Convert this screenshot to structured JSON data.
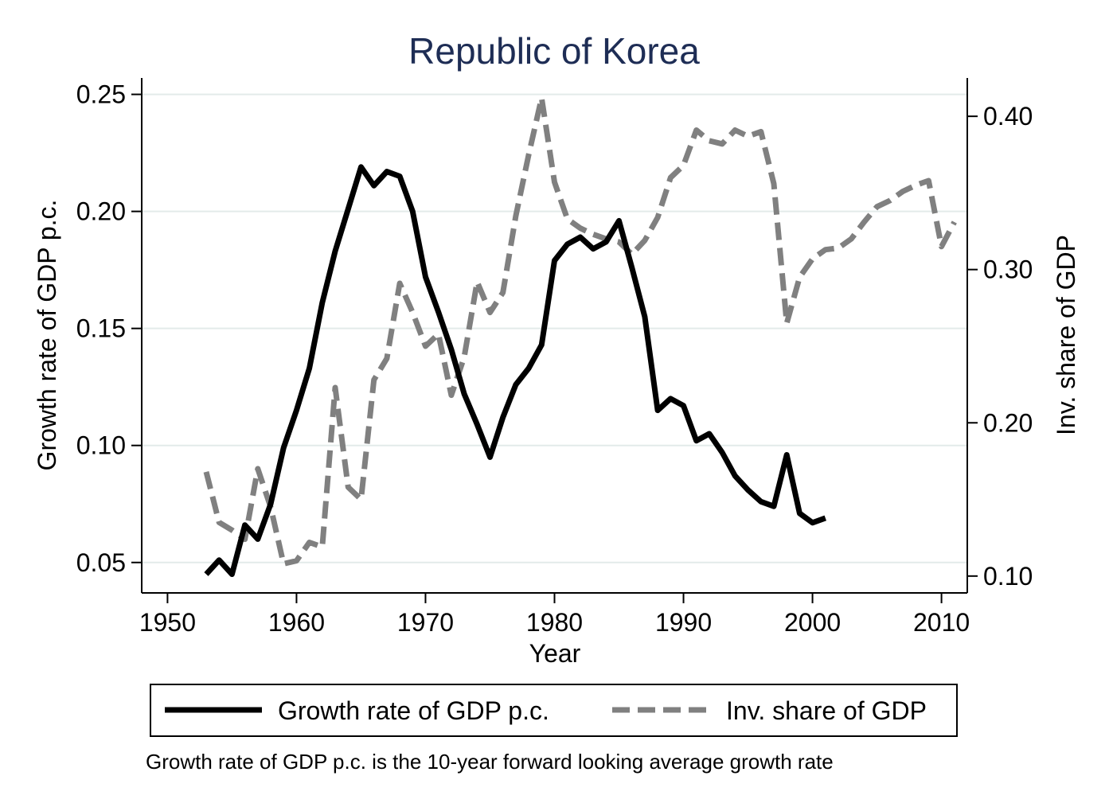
{
  "chart_data": {
    "type": "line",
    "title": "Republic of Korea",
    "xlabel": "Year",
    "ylabel_left": "Growth rate of GDP p.c.",
    "ylabel_right": "Inv. share of GDP",
    "xlim": [
      1948,
      2012
    ],
    "ylim_left": [
      0.037,
      0.257
    ],
    "ylim_right": [
      0.089,
      0.425
    ],
    "x_ticks": [
      1950,
      1960,
      1970,
      1980,
      1990,
      2000,
      2010
    ],
    "x_tick_labels": [
      "1950",
      "1960",
      "1970",
      "1980",
      "1990",
      "2000",
      "2010"
    ],
    "y_left_ticks": [
      0.05,
      0.1,
      0.15,
      0.2,
      0.25
    ],
    "y_left_tick_labels": [
      "0.05",
      "0.10",
      "0.15",
      "0.20",
      "0.25"
    ],
    "y_right_ticks": [
      0.1,
      0.2,
      0.3,
      0.4
    ],
    "y_right_tick_labels": [
      "0.10",
      "0.20",
      "0.30",
      "0.40"
    ],
    "grid": "horizontal",
    "legend_position": "bottom",
    "series": [
      {
        "name": "Growth rate of GDP p.c.",
        "axis": "left",
        "style": "solid",
        "color": "#000000",
        "x": [
          1953,
          1954,
          1955,
          1956,
          1957,
          1958,
          1959,
          1960,
          1961,
          1962,
          1963,
          1964,
          1965,
          1966,
          1967,
          1968,
          1969,
          1970,
          1971,
          1972,
          1973,
          1974,
          1975,
          1976,
          1977,
          1978,
          1979,
          1980,
          1981,
          1982,
          1983,
          1984,
          1985,
          1986,
          1987,
          1988,
          1989,
          1990,
          1991,
          1992,
          1993,
          1994,
          1995,
          1996,
          1997,
          1998,
          1999,
          2000,
          2001
        ],
        "y": [
          0.045,
          0.051,
          0.045,
          0.066,
          0.06,
          0.075,
          0.099,
          0.115,
          0.133,
          0.161,
          0.183,
          0.201,
          0.219,
          0.211,
          0.217,
          0.215,
          0.2,
          0.172,
          0.157,
          0.141,
          0.122,
          0.109,
          0.095,
          0.112,
          0.126,
          0.133,
          0.143,
          0.179,
          0.186,
          0.189,
          0.184,
          0.187,
          0.196,
          0.176,
          0.155,
          0.115,
          0.12,
          0.117,
          0.102,
          0.105,
          0.097,
          0.087,
          0.081,
          0.076,
          0.074,
          0.096,
          0.071,
          0.067,
          0.069
        ]
      },
      {
        "name": "Inv. share of GDP",
        "axis": "right",
        "style": "dashed",
        "color": "#808080",
        "x": [
          1953,
          1954,
          1955,
          1956,
          1957,
          1958,
          1959,
          1960,
          1961,
          1962,
          1963,
          1964,
          1965,
          1966,
          1967,
          1968,
          1969,
          1970,
          1971,
          1972,
          1973,
          1974,
          1975,
          1976,
          1977,
          1978,
          1979,
          1980,
          1981,
          1982,
          1983,
          1984,
          1985,
          1986,
          1987,
          1988,
          1989,
          1990,
          1991,
          1992,
          1993,
          1994,
          1995,
          1996,
          1997,
          1998,
          1999,
          2000,
          2001,
          2002,
          2003,
          2004,
          2005,
          2006,
          2007,
          2008,
          2009,
          2010,
          2011
        ],
        "y": [
          0.168,
          0.135,
          0.13,
          0.124,
          0.17,
          0.145,
          0.108,
          0.11,
          0.122,
          0.119,
          0.223,
          0.158,
          0.15,
          0.228,
          0.242,
          0.291,
          0.272,
          0.25,
          0.258,
          0.218,
          0.243,
          0.292,
          0.272,
          0.285,
          0.335,
          0.375,
          0.412,
          0.357,
          0.333,
          0.327,
          0.323,
          0.32,
          0.318,
          0.31,
          0.319,
          0.334,
          0.36,
          0.368,
          0.391,
          0.384,
          0.382,
          0.391,
          0.387,
          0.39,
          0.356,
          0.265,
          0.295,
          0.307,
          0.313,
          0.314,
          0.32,
          0.331,
          0.341,
          0.345,
          0.351,
          0.355,
          0.358,
          0.315,
          0.331
        ]
      }
    ],
    "legend": [
      {
        "label": "Growth rate of GDP p.c.",
        "style": "solid",
        "color": "#000000"
      },
      {
        "label": "Inv. share of GDP",
        "style": "dashed",
        "color": "#808080"
      }
    ],
    "note": "Growth rate of GDP p.c. is the 10-year forward looking average growth rate",
    "colors": {
      "title": "#1e2d55",
      "grid": "#e3ebea",
      "axis": "#000000"
    }
  }
}
